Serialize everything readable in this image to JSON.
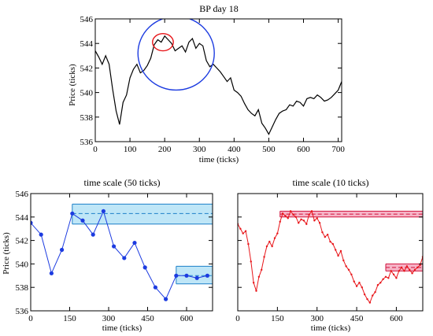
{
  "chart_data": [
    {
      "type": "line",
      "title": "BP day 18",
      "xlabel": "time (ticks)",
      "ylabel": "Price (ticks)",
      "xlim": [
        0,
        710
      ],
      "ylim": [
        536,
        546
      ],
      "xticks": [
        0,
        100,
        200,
        300,
        400,
        500,
        600,
        700
      ],
      "yticks": [
        536,
        538,
        540,
        542,
        544,
        546
      ],
      "line_color": "#000000",
      "series": [
        {
          "x": [
            0,
            10,
            20,
            30,
            40,
            50,
            60,
            70,
            80,
            90,
            100,
            110,
            120,
            130,
            140,
            150,
            160,
            170,
            180,
            190,
            200,
            210,
            220,
            230,
            240,
            250,
            260,
            270,
            280,
            290,
            300,
            310,
            320,
            330,
            340,
            350,
            360,
            370,
            380,
            390,
            400,
            410,
            420,
            430,
            440,
            450,
            460,
            470,
            480,
            490,
            500,
            510,
            520,
            530,
            540,
            550,
            560,
            570,
            580,
            590,
            600,
            610,
            620,
            630,
            640,
            650,
            660,
            670,
            680,
            690,
            700,
            710
          ],
          "values": [
            543.4,
            542.9,
            542.3,
            543.0,
            542.3,
            540.3,
            538.5,
            537.4,
            539.2,
            539.8,
            541.2,
            541.9,
            542.3,
            541.6,
            541.8,
            542.2,
            542.8,
            543.9,
            544.3,
            544.1,
            544.6,
            544.3,
            544.0,
            543.4,
            543.6,
            543.8,
            543.3,
            544.1,
            544.4,
            543.6,
            544.0,
            543.8,
            542.6,
            542.1,
            542.3,
            542.0,
            541.7,
            541.3,
            540.9,
            541.2,
            540.2,
            540.0,
            539.7,
            539.1,
            538.6,
            538.3,
            538.1,
            538.6,
            537.5,
            537.1,
            536.6,
            537.2,
            537.8,
            538.3,
            538.5,
            538.6,
            539.0,
            538.9,
            539.3,
            539.2,
            538.9,
            539.5,
            539.6,
            539.5,
            539.8,
            539.6,
            539.3,
            539.4,
            539.6,
            539.9,
            540.2,
            540.9
          ]
        }
      ],
      "annotations": [
        {
          "type": "circle",
          "color": "#e8161a",
          "cx": 195,
          "cy": 544.1,
          "rx": 30,
          "ry": 0.7
        },
        {
          "type": "circle",
          "color": "#1c3be0",
          "cx": 233,
          "cy": 543.2,
          "rx": 110,
          "ry": 3.0
        }
      ]
    },
    {
      "type": "line",
      "title": "time scale (50 ticks)",
      "xlabel": "time (ticks)",
      "ylabel": "Price (ticks)",
      "xlim": [
        0,
        700
      ],
      "ylim": [
        536,
        546
      ],
      "xticks": [
        0,
        150,
        300,
        450,
        600
      ],
      "yticks": [
        536,
        538,
        540,
        542,
        544,
        546
      ],
      "line_color": "#1c3be0",
      "band_fill": "#bfe6f7",
      "band_edge": "#1c7fc8",
      "series": [
        {
          "x": [
            0,
            40,
            80,
            120,
            160,
            200,
            240,
            280,
            320,
            360,
            400,
            440,
            480,
            520,
            560,
            600,
            640,
            680
          ],
          "values": [
            543.5,
            542.5,
            539.2,
            541.2,
            544.3,
            543.7,
            542.5,
            544.5,
            541.5,
            540.5,
            541.8,
            539.7,
            538.0,
            537.0,
            539.0,
            539.0,
            538.8,
            539.0
          ]
        }
      ],
      "bands": [
        {
          "x_start": 160,
          "x_end": 700,
          "lower": 543.4,
          "upper": 545.1,
          "mean": 544.3
        },
        {
          "x_start": 560,
          "x_end": 700,
          "lower": 538.3,
          "upper": 539.8,
          "mean": 539.0
        }
      ]
    },
    {
      "type": "line",
      "title": "time scale (10 ticks)",
      "xlabel": "time (ticks)",
      "ylabel": "",
      "xlim": [
        0,
        700
      ],
      "ylim": [
        536,
        546
      ],
      "xticks": [
        0,
        150,
        300,
        450,
        600
      ],
      "yticks": [],
      "line_color": "#e8161a",
      "band_fill": "#f6b3c6",
      "band_edge": "#d1143f",
      "series": [
        {
          "x": [
            0,
            10,
            20,
            30,
            40,
            50,
            60,
            70,
            80,
            90,
            100,
            110,
            120,
            130,
            140,
            150,
            160,
            170,
            180,
            190,
            200,
            210,
            220,
            230,
            240,
            250,
            260,
            270,
            280,
            290,
            300,
            310,
            320,
            330,
            340,
            350,
            360,
            370,
            380,
            390,
            400,
            410,
            420,
            430,
            440,
            450,
            460,
            470,
            480,
            490,
            500,
            510,
            520,
            530,
            540,
            550,
            560,
            570,
            580,
            590,
            600,
            610,
            620,
            630,
            640,
            650,
            660,
            670,
            680,
            690,
            700
          ],
          "values": [
            543.4,
            543.0,
            542.6,
            542.8,
            541.7,
            540.2,
            538.4,
            537.7,
            538.9,
            539.5,
            540.6,
            541.5,
            541.9,
            541.5,
            542.2,
            542.6,
            543.6,
            544.3,
            544.1,
            543.9,
            544.5,
            544.2,
            544.0,
            543.5,
            543.8,
            543.7,
            543.4,
            544.2,
            544.5,
            543.7,
            543.9,
            543.5,
            542.7,
            542.3,
            542.5,
            541.9,
            541.7,
            541.2,
            540.7,
            541.1,
            540.3,
            539.8,
            539.5,
            539.1,
            538.5,
            538.1,
            538.4,
            538.0,
            537.4,
            537.0,
            536.7,
            537.3,
            537.6,
            538.2,
            538.4,
            538.7,
            538.9,
            538.8,
            539.4,
            539.1,
            538.8,
            539.4,
            539.7,
            539.4,
            539.8,
            539.5,
            539.2,
            539.5,
            539.7,
            539.9,
            540.6
          ]
        }
      ],
      "bands": [
        {
          "x_start": 160,
          "x_end": 700,
          "lower": 544.0,
          "upper": 544.5,
          "mean": 544.25
        },
        {
          "x_start": 560,
          "x_end": 700,
          "lower": 539.4,
          "upper": 540.0,
          "mean": 539.7
        }
      ]
    }
  ]
}
